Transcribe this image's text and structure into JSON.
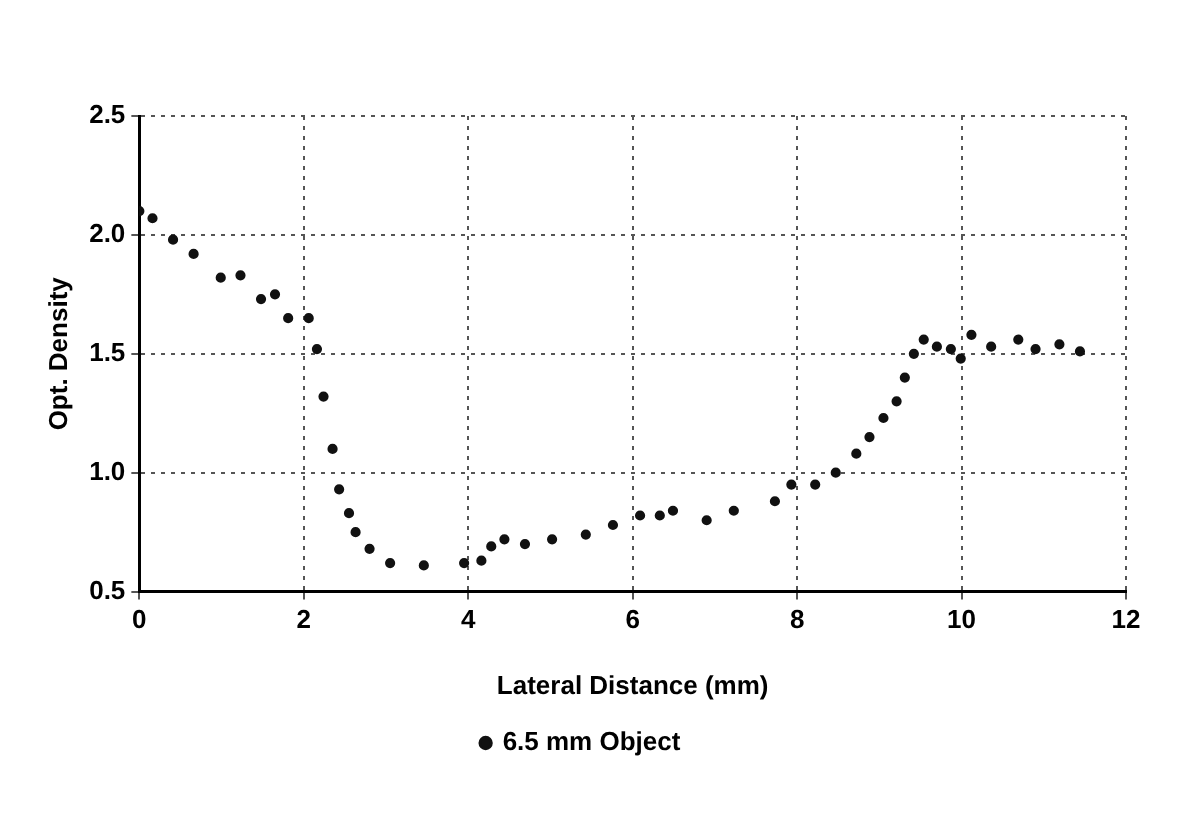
{
  "chart_data": {
    "type": "scatter",
    "xlabel": "Lateral Distance (mm)",
    "ylabel": "Opt. Density",
    "xlim": [
      0,
      12
    ],
    "xticks": [
      0,
      2,
      4,
      6,
      8,
      10,
      12
    ],
    "ylim": [
      0.5,
      2.5
    ],
    "yticks": [
      {
        "value": 0.5,
        "label": "0.5"
      },
      {
        "value": 1,
        "label": "1.0"
      },
      {
        "value": 1.5,
        "label": "1.5"
      },
      {
        "value": 2,
        "label": "2.0"
      },
      {
        "value": 2.5,
        "label": "2.5"
      }
    ],
    "grid": true,
    "legend": "bottom",
    "marker": "circle",
    "series": [
      {
        "name": "6.5 mm Object",
        "color": "#111111",
        "x": [
          0,
          0.16,
          0.41,
          0.66,
          0.99,
          1.23,
          1.48,
          1.65,
          1.81,
          2.06,
          2.16,
          2.24,
          2.35,
          2.43,
          2.55,
          2.63,
          2.8,
          3.05,
          3.46,
          3.95,
          4.16,
          4.28,
          4.44,
          4.69,
          5.02,
          5.43,
          5.76,
          6.09,
          6.33,
          6.49,
          6.9,
          7.23,
          7.73,
          7.93,
          8.22,
          8.47,
          8.72,
          8.88,
          9.05,
          9.21,
          9.31,
          9.42,
          9.54,
          9.7,
          9.87,
          9.99,
          10.12,
          10.36,
          10.69,
          10.9,
          11.19,
          11.44
        ],
        "values": [
          2.1,
          2.07,
          1.98,
          1.92,
          1.82,
          1.83,
          1.73,
          1.75,
          1.65,
          1.65,
          1.52,
          1.32,
          1.1,
          0.93,
          0.83,
          0.75,
          0.68,
          0.62,
          0.61,
          0.62,
          0.63,
          0.69,
          0.72,
          0.7,
          0.72,
          0.74,
          0.78,
          0.82,
          0.82,
          0.84,
          0.8,
          0.84,
          0.88,
          0.95,
          0.95,
          1.0,
          1.08,
          1.15,
          1.23,
          1.3,
          1.4,
          1.5,
          1.56,
          1.53,
          1.52,
          1.48,
          1.58,
          1.53,
          1.56,
          1.52,
          1.54,
          1.51
        ]
      }
    ]
  }
}
